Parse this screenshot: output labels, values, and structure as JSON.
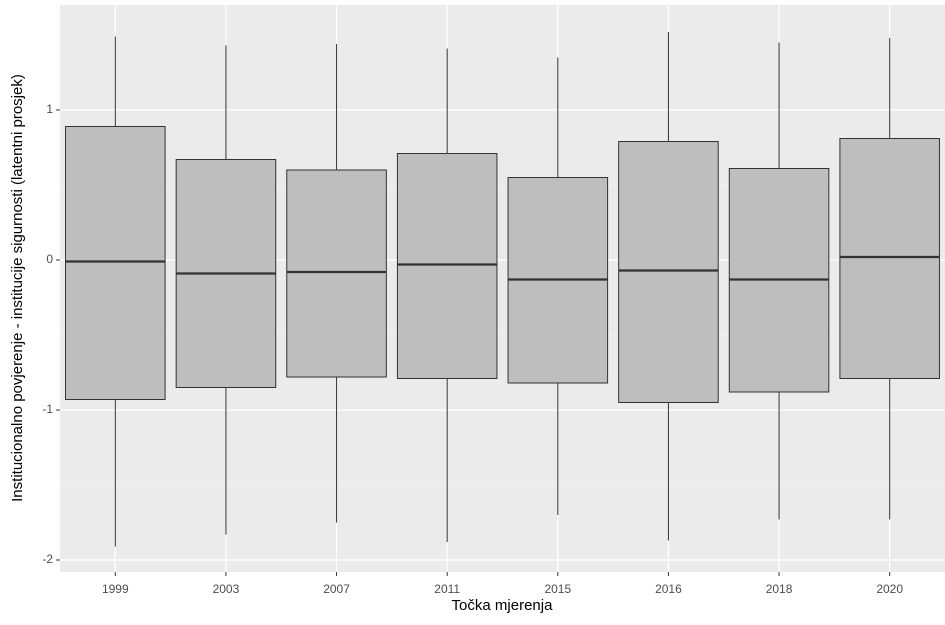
{
  "chart_data": {
    "type": "box",
    "x_label": "Točka mjerenja",
    "y_label": "Institucionalno povjerenje - institucije sigurnosti (latentni prosjek)",
    "categories": [
      "1999",
      "2003",
      "2007",
      "2011",
      "2015",
      "2016",
      "2018",
      "2020"
    ],
    "min": [
      -1.91,
      -1.83,
      -1.75,
      -1.88,
      -1.7,
      -1.87,
      -1.73,
      -1.73
    ],
    "q1": [
      -0.93,
      -0.85,
      -0.78,
      -0.79,
      -0.82,
      -0.95,
      -0.88,
      -0.79
    ],
    "median": [
      -0.01,
      -0.09,
      -0.08,
      -0.03,
      -0.13,
      -0.07,
      -0.13,
      0.02
    ],
    "q3": [
      0.89,
      0.67,
      0.6,
      0.71,
      0.55,
      0.79,
      0.61,
      0.81
    ],
    "max": [
      1.49,
      1.43,
      1.44,
      1.41,
      1.35,
      1.52,
      1.45,
      1.48
    ],
    "color": "#bebebe",
    "ylim": [
      -2.08,
      1.7
    ],
    "yticks": [
      -2,
      -1,
      0,
      1
    ],
    "grid": true
  }
}
